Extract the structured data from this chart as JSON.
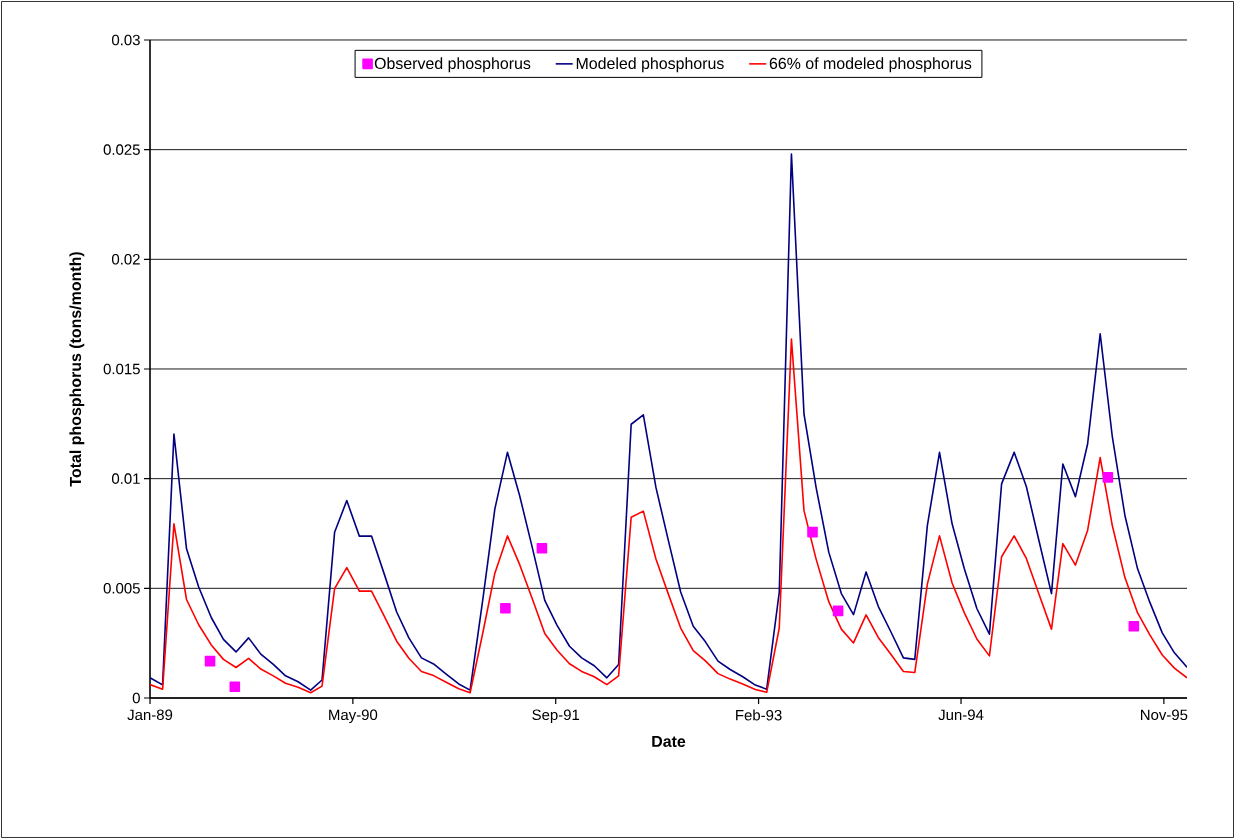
{
  "chart_data": {
    "type": "line",
    "xlabel": "Date",
    "ylabel": "Total phosphorus (tons/month)",
    "x": [
      "1989-01-01",
      "1989-02-01",
      "1989-03-01",
      "1989-04-01",
      "1989-05-01",
      "1989-06-01",
      "1989-07-01",
      "1989-08-01",
      "1989-09-01",
      "1989-10-01",
      "1989-11-01",
      "1989-12-01",
      "1990-01-01",
      "1990-02-01",
      "1990-03-01",
      "1990-04-01",
      "1990-05-01",
      "1990-06-01",
      "1990-07-01",
      "1990-08-01",
      "1990-09-01",
      "1990-10-01",
      "1990-11-01",
      "1990-12-01",
      "1991-01-01",
      "1991-02-01",
      "1991-03-01",
      "1991-04-01",
      "1991-05-01",
      "1991-06-01",
      "1991-07-01",
      "1991-08-01",
      "1991-09-01",
      "1991-10-01",
      "1991-11-01",
      "1991-12-01",
      "1992-01-01",
      "1992-02-01",
      "1992-03-01",
      "1992-04-01",
      "1992-05-01",
      "1992-06-01",
      "1992-07-01",
      "1992-08-01",
      "1992-09-01",
      "1992-10-01",
      "1992-11-01",
      "1992-12-01",
      "1993-01-01",
      "1993-02-01",
      "1993-03-01",
      "1993-04-01",
      "1993-05-01",
      "1993-06-01",
      "1993-07-01",
      "1993-08-01",
      "1993-09-01",
      "1993-10-01",
      "1993-11-01",
      "1993-12-01",
      "1994-01-01",
      "1994-02-01",
      "1994-03-01",
      "1994-04-01",
      "1994-05-01",
      "1994-06-01",
      "1994-07-01",
      "1994-08-01",
      "1994-09-01",
      "1994-10-01",
      "1994-11-01",
      "1994-12-01",
      "1995-01-01",
      "1995-02-01",
      "1995-03-01",
      "1995-04-01",
      "1995-05-01",
      "1995-06-01",
      "1995-07-01",
      "1995-08-01",
      "1995-09-01",
      "1995-10-01",
      "1995-11-01",
      "1995-12-01",
      "1996-01-01"
    ],
    "series": [
      {
        "name": "Observed phosphorus",
        "type": "scatter",
        "marker": "square",
        "color": "#ff00ff",
        "x": [
          "1989-05-29",
          "1989-07-29",
          "1991-05-27",
          "1991-08-25",
          "1993-06-22",
          "1993-08-24",
          "1995-06-20",
          "1995-08-23"
        ],
        "values": [
          0.00168,
          0.00051,
          0.00409,
          0.00683,
          0.00756,
          0.00397,
          0.01006,
          0.00327
        ]
      },
      {
        "name": "Modeled phosphorus",
        "color": "#000080",
        "values": [
          0.00092,
          0.0006,
          0.01203,
          0.0068,
          0.00506,
          0.00367,
          0.00267,
          0.0021,
          0.00274,
          0.002,
          0.00153,
          0.00101,
          0.00074,
          0.00036,
          0.00082,
          0.00756,
          0.009,
          0.00738,
          0.00738,
          0.00567,
          0.00392,
          0.00274,
          0.00183,
          0.00155,
          0.00109,
          0.00064,
          0.00036,
          0.00445,
          0.00862,
          0.0112,
          0.00923,
          0.00688,
          0.00445,
          0.00332,
          0.00236,
          0.00183,
          0.00147,
          0.00092,
          0.00153,
          0.01248,
          0.01291,
          0.0096,
          0.00723,
          0.00483,
          0.00327,
          0.00256,
          0.00168,
          0.0013,
          0.00097,
          0.00059,
          0.0004,
          0.00483,
          0.0248,
          0.01294,
          0.00958,
          0.00665,
          0.00476,
          0.0038,
          0.00574,
          0.00418,
          0.00302,
          0.00183,
          0.00176,
          0.00786,
          0.0112,
          0.00794,
          0.0059,
          0.00408,
          0.00291,
          0.00976,
          0.0112,
          0.00964,
          0.00718,
          0.00476,
          0.01067,
          0.00918,
          0.01158,
          0.0166,
          0.0119,
          0.00832,
          0.0059,
          0.00438,
          0.00297,
          0.00206,
          0.0014
        ]
      },
      {
        "name": "66% of modeled phosphorus",
        "color": "#ff0000",
        "values": [
          0.00061,
          0.0004,
          0.00794,
          0.00449,
          0.00334,
          0.00242,
          0.00176,
          0.00139,
          0.00181,
          0.00132,
          0.00101,
          0.00067,
          0.00049,
          0.00024,
          0.00054,
          0.00499,
          0.00594,
          0.00487,
          0.00487,
          0.00374,
          0.00259,
          0.00181,
          0.00121,
          0.00102,
          0.00072,
          0.00042,
          0.00024,
          0.00294,
          0.00569,
          0.00739,
          0.00609,
          0.00454,
          0.00294,
          0.00219,
          0.00156,
          0.00121,
          0.00097,
          0.00061,
          0.00101,
          0.00824,
          0.00852,
          0.00634,
          0.00477,
          0.00319,
          0.00216,
          0.00169,
          0.00111,
          0.00086,
          0.00064,
          0.00039,
          0.00026,
          0.00319,
          0.01637,
          0.00854,
          0.00632,
          0.00439,
          0.00314,
          0.00251,
          0.00379,
          0.00276,
          0.00199,
          0.00121,
          0.00116,
          0.00519,
          0.00739,
          0.00524,
          0.00389,
          0.00269,
          0.00192,
          0.00644,
          0.00739,
          0.00636,
          0.00474,
          0.00314,
          0.00704,
          0.00606,
          0.00764,
          0.01096,
          0.00785,
          0.00549,
          0.00389,
          0.00289,
          0.00196,
          0.00136,
          0.00092
        ]
      }
    ],
    "xlim": [
      "1989-01-01",
      "1996-01-01"
    ],
    "xticks": [
      {
        "value": "1989-01-01",
        "label": "Jan-89"
      },
      {
        "value": "1990-05-16",
        "label": "May-90"
      },
      {
        "value": "1991-09-28",
        "label": "Sep-91"
      },
      {
        "value": "1993-02-09",
        "label": "Feb-93"
      },
      {
        "value": "1994-06-23",
        "label": "Jun-94"
      },
      {
        "value": "1995-11-05",
        "label": "Nov-95"
      }
    ],
    "ylim": [
      0,
      0.03
    ],
    "yticks": [
      0,
      0.005,
      0.01,
      0.015,
      0.02,
      0.025,
      0.03
    ],
    "grid": "y",
    "legend": "top"
  }
}
